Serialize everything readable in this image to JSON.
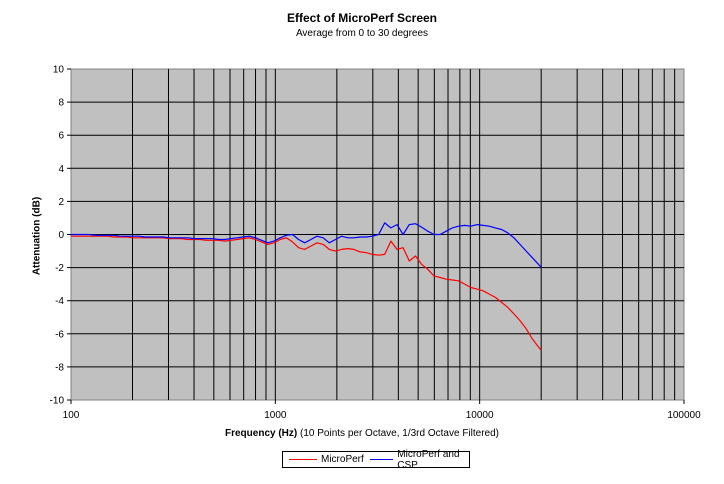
{
  "chart_data": {
    "type": "line",
    "title": "Effect of MicroPerf Screen",
    "subtitle": "Average from 0 to 30 degrees",
    "xlabel": "Frequency (Hz)",
    "xlabel_note": " (10 Points per Octave, 1/3rd Octave Filtered)",
    "ylabel": "Attenuation (dB)",
    "x_scale": "log",
    "xlim": [
      100,
      100000
    ],
    "ylim": [
      -10,
      10
    ],
    "x_ticks": [
      "100",
      "1000",
      "10000",
      "100000"
    ],
    "y_ticks": [
      "10",
      "8",
      "6",
      "4",
      "2",
      "0",
      "-2",
      "-4",
      "-6",
      "-8",
      "-10"
    ],
    "grid": true,
    "legend_position": "bottom",
    "background_color": "#c0c0c0",
    "series": [
      {
        "name": "MicroPerf",
        "color": "#ff0000",
        "x": [
          100,
          107,
          115,
          123,
          132,
          141,
          152,
          162,
          174,
          187,
          200,
          215,
          230,
          246,
          264,
          283,
          303,
          325,
          348,
          373,
          400,
          429,
          459,
          492,
          528,
          566,
          606,
          650,
          696,
          746,
          800,
          857,
          919,
          985,
          1056,
          1131,
          1213,
          1300,
          1393,
          1493,
          1600,
          1715,
          1838,
          1970,
          2111,
          2263,
          2425,
          2599,
          2786,
          2986,
          3200,
          3430,
          3676,
          3940,
          4222,
          4525,
          4850,
          5198,
          5572,
          5971,
          6400,
          6860,
          7352,
          7880,
          8445,
          9051,
          9701,
          10398,
          11143,
          11943,
          12800,
          13719,
          14703,
          15759,
          16890,
          18102,
          19401,
          20000
        ],
        "y": [
          -0.1,
          -0.1,
          -0.1,
          -0.1,
          -0.1,
          -0.1,
          -0.1,
          -0.15,
          -0.15,
          -0.15,
          -0.2,
          -0.2,
          -0.2,
          -0.2,
          -0.2,
          -0.2,
          -0.25,
          -0.25,
          -0.25,
          -0.3,
          -0.3,
          -0.3,
          -0.35,
          -0.35,
          -0.35,
          -0.4,
          -0.35,
          -0.3,
          -0.25,
          -0.2,
          -0.3,
          -0.45,
          -0.6,
          -0.5,
          -0.3,
          -0.2,
          -0.45,
          -0.8,
          -0.9,
          -0.7,
          -0.5,
          -0.6,
          -0.9,
          -1.0,
          -0.9,
          -0.85,
          -0.9,
          -1.05,
          -1.1,
          -1.2,
          -1.25,
          -1.2,
          -0.4,
          -0.9,
          -0.8,
          -1.6,
          -1.3,
          -1.8,
          -2.1,
          -2.5,
          -2.6,
          -2.7,
          -2.75,
          -2.8,
          -3.0,
          -3.2,
          -3.3,
          -3.4,
          -3.6,
          -3.8,
          -4.1,
          -4.4,
          -4.8,
          -5.2,
          -5.7,
          -6.3,
          -6.8,
          -7.0
        ]
      },
      {
        "name": "MicroPerf and CSP",
        "color": "#0000ff",
        "x": [
          100,
          107,
          115,
          123,
          132,
          141,
          152,
          162,
          174,
          187,
          200,
          215,
          230,
          246,
          264,
          283,
          303,
          325,
          348,
          373,
          400,
          429,
          459,
          492,
          528,
          566,
          606,
          650,
          696,
          746,
          800,
          857,
          919,
          985,
          1056,
          1131,
          1213,
          1300,
          1393,
          1493,
          1600,
          1715,
          1838,
          1970,
          2111,
          2263,
          2425,
          2599,
          2786,
          2986,
          3200,
          3430,
          3676,
          3940,
          4222,
          4525,
          4850,
          5198,
          5572,
          5971,
          6400,
          6860,
          7352,
          7880,
          8445,
          9051,
          9701,
          10398,
          11143,
          11943,
          12800,
          13719,
          14703,
          15759,
          16890,
          18102,
          19401,
          20000
        ],
        "y": [
          0.0,
          0.0,
          0.0,
          0.0,
          -0.05,
          -0.05,
          -0.05,
          -0.05,
          -0.1,
          -0.1,
          -0.1,
          -0.1,
          -0.15,
          -0.15,
          -0.15,
          -0.15,
          -0.2,
          -0.2,
          -0.2,
          -0.2,
          -0.25,
          -0.25,
          -0.25,
          -0.25,
          -0.3,
          -0.3,
          -0.25,
          -0.2,
          -0.15,
          -0.1,
          -0.2,
          -0.35,
          -0.5,
          -0.4,
          -0.2,
          -0.05,
          0.0,
          -0.3,
          -0.5,
          -0.3,
          -0.1,
          -0.2,
          -0.5,
          -0.3,
          -0.1,
          -0.2,
          -0.2,
          -0.15,
          -0.15,
          -0.1,
          0.0,
          0.7,
          0.4,
          0.6,
          0.0,
          0.6,
          0.65,
          0.45,
          0.2,
          0.0,
          0.0,
          0.2,
          0.4,
          0.5,
          0.55,
          0.5,
          0.6,
          0.55,
          0.5,
          0.4,
          0.3,
          0.1,
          -0.2,
          -0.6,
          -1.0,
          -1.4,
          -1.8,
          -2.0
        ]
      }
    ]
  }
}
